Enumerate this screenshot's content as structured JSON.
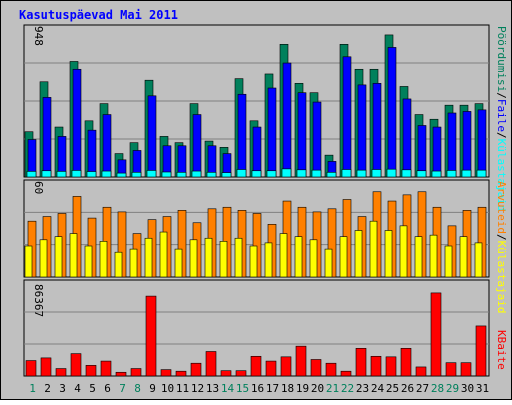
{
  "title": "Kasutuspäevad Mai 2011",
  "right_legend_top": [
    {
      "text": "Pöördumisi",
      "color": "#00805c"
    },
    {
      "text": "/",
      "color": "#000000"
    },
    {
      "text": "Faile",
      "color": "#0000ff"
    },
    {
      "text": "/",
      "color": "#000000"
    },
    {
      "text": "Külastajaid",
      "color": "#00ffff"
    }
  ],
  "right_legend_mid": [
    {
      "text": "Arvuteid",
      "color": "#ff8000"
    },
    {
      "text": "/",
      "color": "#000000"
    },
    {
      "text": "Külastajaid",
      "color": "#ffff00"
    }
  ],
  "right_legend_bot": [
    {
      "text": "KBaite",
      "color": "#ff0000"
    }
  ],
  "colors": {
    "hits": "#00805c",
    "files": "#0000ff",
    "visits": "#00ffff",
    "sites": "#ff8000",
    "visitors": "#ffff00",
    "kbytes": "#ff0000",
    "panel_bg": "#c0c0c0",
    "title": "#0000ff",
    "weekend_day": "#00805c"
  },
  "chart_data": [
    {
      "type": "bar",
      "panel": "top",
      "y_max_label": "948",
      "ylim": [
        0,
        948
      ],
      "categories": [
        "1",
        "2",
        "3",
        "4",
        "5",
        "6",
        "7",
        "8",
        "9",
        "10",
        "11",
        "12",
        "13",
        "14",
        "15",
        "16",
        "17",
        "18",
        "19",
        "20",
        "21",
        "22",
        "23",
        "24",
        "25",
        "26",
        "27",
        "28",
        "29",
        "30",
        "31"
      ],
      "series": [
        {
          "name": "Pöördumisi",
          "values": [
            290,
            610,
            320,
            740,
            360,
            470,
            150,
            220,
            620,
            260,
            220,
            470,
            230,
            190,
            630,
            360,
            660,
            850,
            600,
            540,
            140,
            850,
            690,
            690,
            910,
            580,
            400,
            370,
            460,
            460,
            470
          ]
        },
        {
          "name": "Faile",
          "values": [
            240,
            510,
            260,
            690,
            300,
            400,
            110,
            170,
            520,
            200,
            200,
            400,
            200,
            150,
            530,
            320,
            570,
            730,
            540,
            480,
            100,
            770,
            590,
            600,
            830,
            500,
            330,
            320,
            410,
            420,
            430
          ]
        },
        {
          "name": "Külastajaid",
          "values": [
            36,
            40,
            36,
            42,
            35,
            38,
            25,
            30,
            42,
            32,
            30,
            38,
            30,
            28,
            48,
            40,
            40,
            52,
            46,
            44,
            30,
            48,
            44,
            48,
            50,
            46,
            40,
            38,
            42,
            44,
            44
          ]
        }
      ]
    },
    {
      "type": "bar",
      "panel": "middle",
      "y_max_label": "60",
      "ylim": [
        0,
        60
      ],
      "categories": [
        "1",
        "2",
        "3",
        "4",
        "5",
        "6",
        "7",
        "8",
        "9",
        "10",
        "11",
        "12",
        "13",
        "14",
        "15",
        "16",
        "17",
        "18",
        "19",
        "20",
        "21",
        "22",
        "23",
        "24",
        "25",
        "26",
        "27",
        "28",
        "29",
        "30",
        "31"
      ],
      "series": [
        {
          "name": "Arvuteid",
          "values": [
            36,
            39,
            41,
            52,
            38,
            45,
            42,
            28,
            37,
            39,
            43,
            35,
            44,
            45,
            43,
            41,
            34,
            49,
            45,
            42,
            44,
            50,
            39,
            55,
            49,
            53,
            55,
            45,
            33,
            43,
            45
          ]
        },
        {
          "name": "Külastajaid",
          "values": [
            20,
            24,
            26,
            28,
            20,
            23,
            16,
            18,
            25,
            29,
            18,
            24,
            25,
            23,
            25,
            20,
            22,
            28,
            26,
            24,
            18,
            26,
            30,
            36,
            30,
            33,
            26,
            27,
            20,
            26,
            22
          ]
        }
      ]
    },
    {
      "type": "bar",
      "panel": "bottom",
      "y_max_label": "86367",
      "ylim": [
        0,
        86367
      ],
      "categories": [
        "1",
        "2",
        "3",
        "4",
        "5",
        "6",
        "7",
        "8",
        "9",
        "10",
        "11",
        "12",
        "13",
        "14",
        "15",
        "16",
        "17",
        "18",
        "19",
        "20",
        "21",
        "22",
        "23",
        "24",
        "25",
        "26",
        "27",
        "28",
        "29",
        "30",
        "31"
      ],
      "series": [
        {
          "name": "KBaite",
          "values": [
            14500,
            17000,
            7000,
            21000,
            10000,
            14000,
            3500,
            7000,
            75000,
            6000,
            4500,
            12000,
            23000,
            5000,
            5000,
            18500,
            14000,
            18000,
            28000,
            15500,
            12000,
            4500,
            26000,
            18500,
            18000,
            26000,
            8500,
            78000,
            12500,
            12500,
            47000
          ]
        }
      ]
    }
  ],
  "x_axis": {
    "labels": [
      "1",
      "2",
      "3",
      "4",
      "5",
      "6",
      "7",
      "8",
      "9",
      "10",
      "11",
      "12",
      "13",
      "14",
      "15",
      "16",
      "17",
      "18",
      "19",
      "20",
      "21",
      "22",
      "23",
      "24",
      "25",
      "26",
      "27",
      "28",
      "29",
      "30",
      "31"
    ],
    "weekend": [
      1,
      7,
      8,
      14,
      15,
      21,
      22,
      28,
      29
    ]
  }
}
